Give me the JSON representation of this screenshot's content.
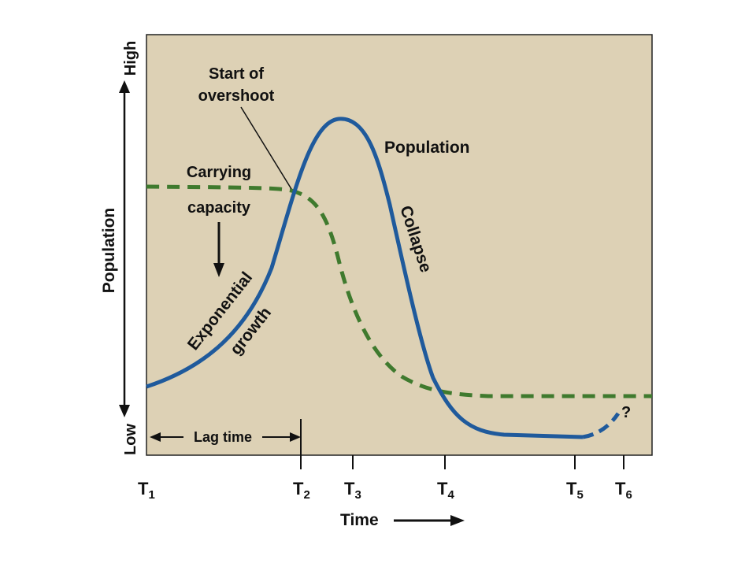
{
  "chart_data": {
    "type": "line",
    "title": "",
    "xlabel": "Time",
    "ylabel": "Population",
    "y_scale_labels": {
      "high": "High",
      "low": "Low"
    },
    "x_ticks": [
      {
        "base": "T",
        "sub": "1"
      },
      {
        "base": "T",
        "sub": "2"
      },
      {
        "base": "T",
        "sub": "3"
      },
      {
        "base": "T",
        "sub": "4"
      },
      {
        "base": "T",
        "sub": "5"
      },
      {
        "base": "T",
        "sub": "6"
      }
    ],
    "series": [
      {
        "name": "Population",
        "style": "solid",
        "color": "#1f5a9c"
      },
      {
        "name": "Carrying capacity",
        "style": "dashed",
        "color": "#3f7a2e"
      }
    ],
    "annotations": {
      "carrying_capacity_line1": "Carrying",
      "carrying_capacity_line2": "capacity",
      "overshoot_line1": "Start of",
      "overshoot_line2": "overshoot",
      "population": "Population",
      "collapse": "Collapse",
      "exponential": "Exponential",
      "growth": "growth",
      "lag_time": "Lag time",
      "question": "?"
    },
    "grid": false,
    "background_color": "#ddd1b5",
    "legend": "none"
  }
}
